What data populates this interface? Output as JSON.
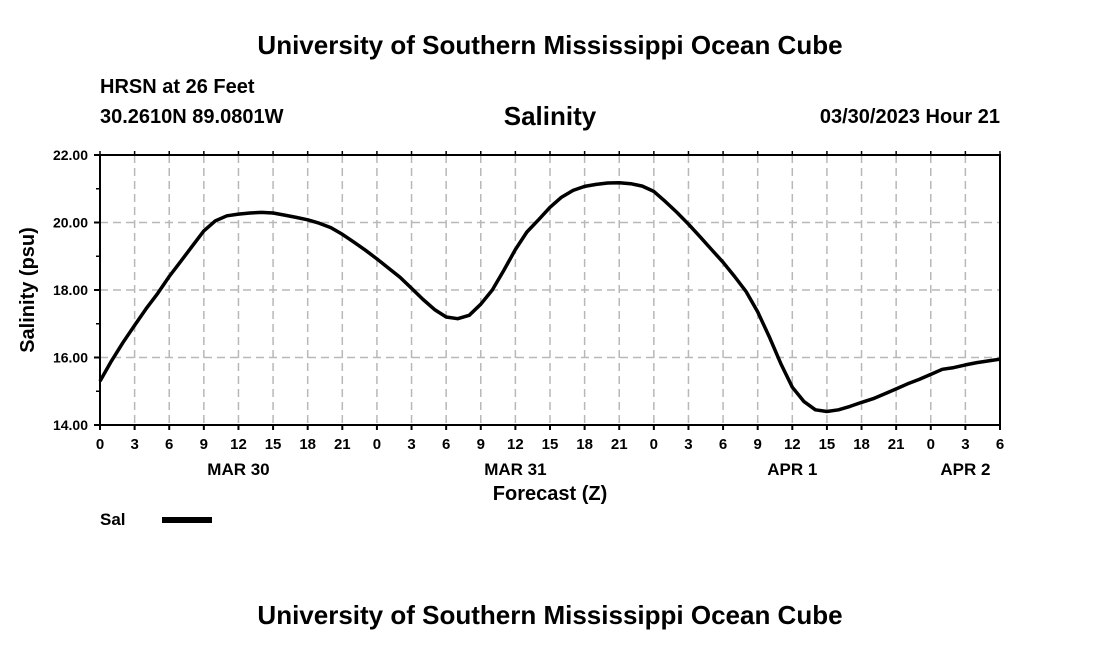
{
  "header": {
    "title_top": "University of Southern Mississippi Ocean Cube",
    "station": "HRSN at 26 Feet",
    "coords": "30.2610N  89.0801W",
    "variable": "Salinity",
    "timestamp": "03/30/2023 Hour 21"
  },
  "footer": {
    "title_bottom": "University of Southern Mississippi Ocean Cube"
  },
  "legend": {
    "label": "Sal",
    "color": "#000000"
  },
  "chart_data": {
    "type": "line",
    "title": "Salinity",
    "xlabel": "Forecast (Z)",
    "ylabel": "Salinity (psu)",
    "ylim": [
      14,
      22
    ],
    "yticks": [
      "14.00",
      "16.00",
      "18.00",
      "20.00",
      "22.00"
    ],
    "xlim_hours": [
      0,
      78
    ],
    "xtick_labels": [
      "0",
      "3",
      "6",
      "9",
      "12",
      "15",
      "18",
      "21",
      "0",
      "3",
      "6",
      "9",
      "12",
      "15",
      "18",
      "21",
      "0",
      "3",
      "6",
      "9",
      "12",
      "15",
      "18",
      "21",
      "0",
      "3",
      "6"
    ],
    "date_labels": [
      {
        "label": "MAR 30",
        "hour": 12
      },
      {
        "label": "MAR 31",
        "hour": 36
      },
      {
        "label": "APR 1",
        "hour": 60
      },
      {
        "label": "APR 2",
        "hour": 75
      }
    ],
    "grid": true,
    "series": [
      {
        "name": "Sal",
        "x_hours": [
          0,
          1,
          2,
          3,
          4,
          5,
          6,
          7,
          8,
          9,
          10,
          11,
          12,
          13,
          14,
          15,
          16,
          17,
          18,
          19,
          20,
          21,
          22,
          23,
          24,
          25,
          26,
          27,
          28,
          29,
          30,
          31,
          32,
          33,
          34,
          35,
          36,
          37,
          38,
          39,
          40,
          41,
          42,
          43,
          44,
          45,
          46,
          47,
          48,
          49,
          50,
          51,
          52,
          53,
          54,
          55,
          56,
          57,
          58,
          59,
          60,
          61,
          62,
          63,
          64,
          65,
          66,
          67,
          68,
          69,
          70,
          71,
          72,
          73,
          74,
          75,
          76,
          77,
          78
        ],
        "values": [
          15.3,
          15.9,
          16.45,
          16.95,
          17.45,
          17.9,
          18.4,
          18.85,
          19.3,
          19.75,
          20.05,
          20.2,
          20.25,
          20.28,
          20.3,
          20.28,
          20.22,
          20.15,
          20.08,
          19.98,
          19.85,
          19.65,
          19.42,
          19.18,
          18.92,
          18.65,
          18.38,
          18.05,
          17.72,
          17.42,
          17.2,
          17.15,
          17.25,
          17.58,
          18.0,
          18.58,
          19.2,
          19.72,
          20.08,
          20.45,
          20.75,
          20.95,
          21.07,
          21.13,
          21.17,
          21.18,
          21.15,
          21.08,
          20.92,
          20.62,
          20.3,
          19.95,
          19.58,
          19.2,
          18.82,
          18.4,
          17.95,
          17.35,
          16.62,
          15.82,
          15.12,
          14.7,
          14.45,
          14.4,
          14.45,
          14.55,
          14.67,
          14.78,
          14.92,
          15.07,
          15.22,
          15.35,
          15.5,
          15.65,
          15.7,
          15.78,
          15.85,
          15.9,
          15.95
        ]
      }
    ]
  }
}
